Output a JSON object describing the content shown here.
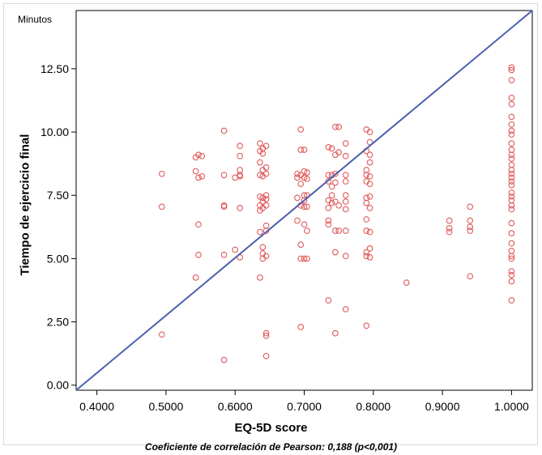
{
  "chart_data": {
    "type": "scatter",
    "unit_label": "Minutos",
    "xlabel": "EQ-5D score",
    "ylabel": "Tiempo de ejercicio final",
    "subtitle": "Coeficiente de correlación de Pearson: 0,188 (p<0,001)",
    "xlim": [
      0.37,
      1.03
    ],
    "ylim": [
      -0.2,
      14.8
    ],
    "x_ticks": [
      "0.4000",
      "0.5000",
      "0.6000",
      "0.7000",
      "0.8000",
      "0.9000",
      "1.0000"
    ],
    "y_ticks": [
      "0.00",
      "2.50",
      "5.00",
      "7.50",
      "10.00",
      "12.50"
    ],
    "reference_line": {
      "x": [
        0.37,
        1.03
      ],
      "y": [
        -0.2,
        14.8
      ]
    },
    "colors": {
      "points": "#e05a5a",
      "line": "#4a5fae",
      "axes": "#000000"
    },
    "grid": false,
    "points": [
      [
        0.494,
        8.35
      ],
      [
        0.494,
        7.05
      ],
      [
        0.494,
        2.0
      ],
      [
        0.543,
        9.0
      ],
      [
        0.543,
        8.45
      ],
      [
        0.543,
        4.25
      ],
      [
        0.547,
        9.1
      ],
      [
        0.547,
        8.2
      ],
      [
        0.547,
        6.35
      ],
      [
        0.547,
        5.15
      ],
      [
        0.552,
        9.05
      ],
      [
        0.552,
        8.25
      ],
      [
        0.584,
        10.05
      ],
      [
        0.584,
        8.3
      ],
      [
        0.584,
        7.1
      ],
      [
        0.584,
        7.05
      ],
      [
        0.584,
        5.15
      ],
      [
        0.584,
        1.0
      ],
      [
        0.6,
        8.2
      ],
      [
        0.6,
        5.35
      ],
      [
        0.607,
        9.45
      ],
      [
        0.607,
        9.05
      ],
      [
        0.607,
        8.5
      ],
      [
        0.607,
        8.3
      ],
      [
        0.607,
        8.25
      ],
      [
        0.607,
        7.0
      ],
      [
        0.607,
        5.05
      ],
      [
        0.636,
        9.55
      ],
      [
        0.636,
        9.25
      ],
      [
        0.636,
        8.8
      ],
      [
        0.636,
        8.3
      ],
      [
        0.636,
        7.45
      ],
      [
        0.636,
        7.1
      ],
      [
        0.636,
        6.9
      ],
      [
        0.636,
        6.05
      ],
      [
        0.636,
        4.25
      ],
      [
        0.64,
        9.35
      ],
      [
        0.64,
        9.15
      ],
      [
        0.64,
        8.5
      ],
      [
        0.64,
        8.25
      ],
      [
        0.64,
        7.4
      ],
      [
        0.64,
        7.25
      ],
      [
        0.64,
        7.0
      ],
      [
        0.64,
        5.45
      ],
      [
        0.64,
        5.2
      ],
      [
        0.64,
        5.0
      ],
      [
        0.645,
        9.45
      ],
      [
        0.645,
        8.6
      ],
      [
        0.645,
        8.35
      ],
      [
        0.645,
        7.5
      ],
      [
        0.645,
        7.35
      ],
      [
        0.645,
        7.1
      ],
      [
        0.645,
        6.3
      ],
      [
        0.645,
        6.1
      ],
      [
        0.645,
        5.1
      ],
      [
        0.645,
        2.05
      ],
      [
        0.645,
        1.95
      ],
      [
        0.645,
        1.15
      ],
      [
        0.69,
        8.35
      ],
      [
        0.69,
        8.2
      ],
      [
        0.69,
        7.4
      ],
      [
        0.69,
        6.5
      ],
      [
        0.695,
        10.1
      ],
      [
        0.695,
        9.3
      ],
      [
        0.695,
        8.3
      ],
      [
        0.695,
        7.95
      ],
      [
        0.695,
        7.1
      ],
      [
        0.695,
        5.55
      ],
      [
        0.695,
        5.0
      ],
      [
        0.695,
        2.3
      ],
      [
        0.7,
        9.3
      ],
      [
        0.7,
        8.45
      ],
      [
        0.7,
        8.2
      ],
      [
        0.7,
        7.5
      ],
      [
        0.7,
        7.3
      ],
      [
        0.7,
        7.05
      ],
      [
        0.7,
        6.35
      ],
      [
        0.7,
        5.0
      ],
      [
        0.704,
        8.4
      ],
      [
        0.704,
        8.15
      ],
      [
        0.704,
        7.5
      ],
      [
        0.704,
        7.05
      ],
      [
        0.704,
        6.1
      ],
      [
        0.704,
        5.0
      ],
      [
        0.735,
        9.4
      ],
      [
        0.735,
        8.3
      ],
      [
        0.735,
        8.05
      ],
      [
        0.735,
        7.3
      ],
      [
        0.735,
        7.0
      ],
      [
        0.735,
        6.5
      ],
      [
        0.735,
        6.35
      ],
      [
        0.735,
        3.35
      ],
      [
        0.74,
        9.35
      ],
      [
        0.74,
        8.3
      ],
      [
        0.74,
        7.85
      ],
      [
        0.74,
        7.5
      ],
      [
        0.74,
        7.2
      ],
      [
        0.745,
        10.2
      ],
      [
        0.745,
        9.1
      ],
      [
        0.745,
        8.35
      ],
      [
        0.745,
        8.0
      ],
      [
        0.745,
        7.25
      ],
      [
        0.745,
        6.1
      ],
      [
        0.745,
        5.25
      ],
      [
        0.745,
        2.05
      ],
      [
        0.75,
        10.2
      ],
      [
        0.75,
        9.2
      ],
      [
        0.75,
        7.1
      ],
      [
        0.75,
        6.1
      ],
      [
        0.76,
        9.55
      ],
      [
        0.76,
        9.05
      ],
      [
        0.76,
        8.3
      ],
      [
        0.76,
        8.05
      ],
      [
        0.76,
        7.5
      ],
      [
        0.76,
        7.25
      ],
      [
        0.76,
        6.95
      ],
      [
        0.76,
        6.1
      ],
      [
        0.76,
        5.1
      ],
      [
        0.76,
        3.0
      ],
      [
        0.79,
        10.1
      ],
      [
        0.79,
        9.25
      ],
      [
        0.79,
        8.5
      ],
      [
        0.79,
        8.3
      ],
      [
        0.79,
        8.05
      ],
      [
        0.79,
        7.4
      ],
      [
        0.79,
        7.2
      ],
      [
        0.79,
        6.55
      ],
      [
        0.79,
        6.1
      ],
      [
        0.79,
        5.25
      ],
      [
        0.79,
        5.1
      ],
      [
        0.79,
        2.35
      ],
      [
        0.795,
        10.0
      ],
      [
        0.795,
        9.6
      ],
      [
        0.795,
        9.1
      ],
      [
        0.795,
        8.8
      ],
      [
        0.795,
        8.25
      ],
      [
        0.795,
        7.95
      ],
      [
        0.795,
        7.45
      ],
      [
        0.795,
        7.0
      ],
      [
        0.795,
        6.05
      ],
      [
        0.795,
        5.4
      ],
      [
        0.795,
        5.05
      ],
      [
        0.848,
        4.05
      ],
      [
        0.91,
        6.5
      ],
      [
        0.91,
        6.2
      ],
      [
        0.91,
        6.05
      ],
      [
        0.94,
        7.05
      ],
      [
        0.94,
        6.5
      ],
      [
        0.94,
        6.25
      ],
      [
        0.94,
        6.1
      ],
      [
        0.94,
        4.3
      ],
      [
        1.0,
        12.55
      ],
      [
        1.0,
        12.45
      ],
      [
        1.0,
        12.05
      ],
      [
        1.0,
        11.35
      ],
      [
        1.0,
        11.1
      ],
      [
        1.0,
        10.6
      ],
      [
        1.0,
        10.3
      ],
      [
        1.0,
        10.05
      ],
      [
        1.0,
        9.9
      ],
      [
        1.0,
        9.55
      ],
      [
        1.0,
        9.3
      ],
      [
        1.0,
        9.1
      ],
      [
        1.0,
        8.95
      ],
      [
        1.0,
        8.7
      ],
      [
        1.0,
        8.5
      ],
      [
        1.0,
        8.35
      ],
      [
        1.0,
        8.2
      ],
      [
        1.0,
        8.05
      ],
      [
        1.0,
        7.9
      ],
      [
        1.0,
        7.6
      ],
      [
        1.0,
        7.45
      ],
      [
        1.0,
        7.3
      ],
      [
        1.0,
        7.1
      ],
      [
        1.0,
        6.95
      ],
      [
        1.0,
        6.4
      ],
      [
        1.0,
        6.0
      ],
      [
        1.0,
        5.6
      ],
      [
        1.0,
        5.3
      ],
      [
        1.0,
        5.1
      ],
      [
        1.0,
        5.0
      ],
      [
        1.0,
        4.5
      ],
      [
        1.0,
        4.35
      ],
      [
        1.0,
        4.1
      ],
      [
        1.0,
        3.35
      ]
    ]
  }
}
